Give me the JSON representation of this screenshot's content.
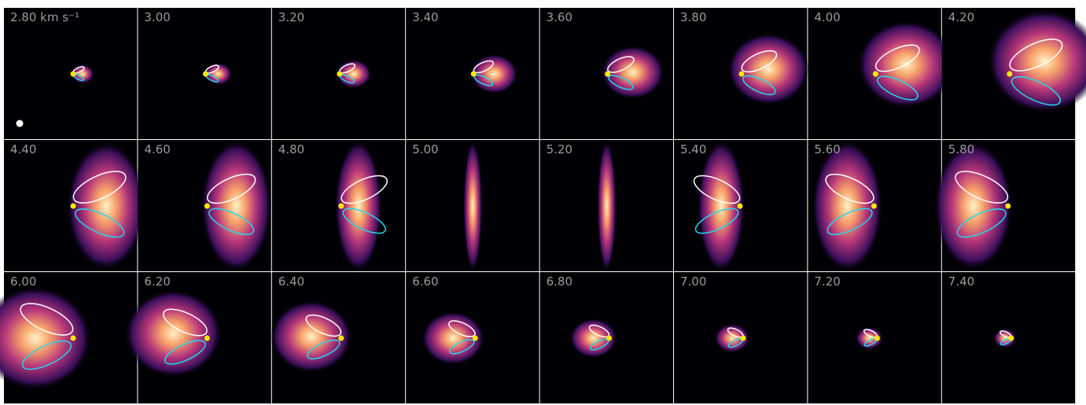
{
  "panels": [
    {
      "label": "2.80 km s⁻¹"
    },
    {
      "label": "3.00"
    },
    {
      "label": "3.20"
    },
    {
      "label": "3.40"
    },
    {
      "label": "3.60"
    },
    {
      "label": "3.80"
    },
    {
      "label": "4.00"
    },
    {
      "label": "4.20"
    },
    {
      "label": "4.40"
    },
    {
      "label": "4.60"
    },
    {
      "label": "4.80"
    },
    {
      "label": "5.00"
    },
    {
      "label": "5.20"
    },
    {
      "label": "5.40"
    },
    {
      "label": "5.60"
    },
    {
      "label": "5.80"
    },
    {
      "label": "6.00"
    },
    {
      "label": "6.20"
    },
    {
      "label": "6.40"
    },
    {
      "label": "6.60"
    },
    {
      "label": "6.80"
    },
    {
      "label": "7.00"
    },
    {
      "label": "7.20"
    },
    {
      "label": "7.40"
    }
  ]
}
